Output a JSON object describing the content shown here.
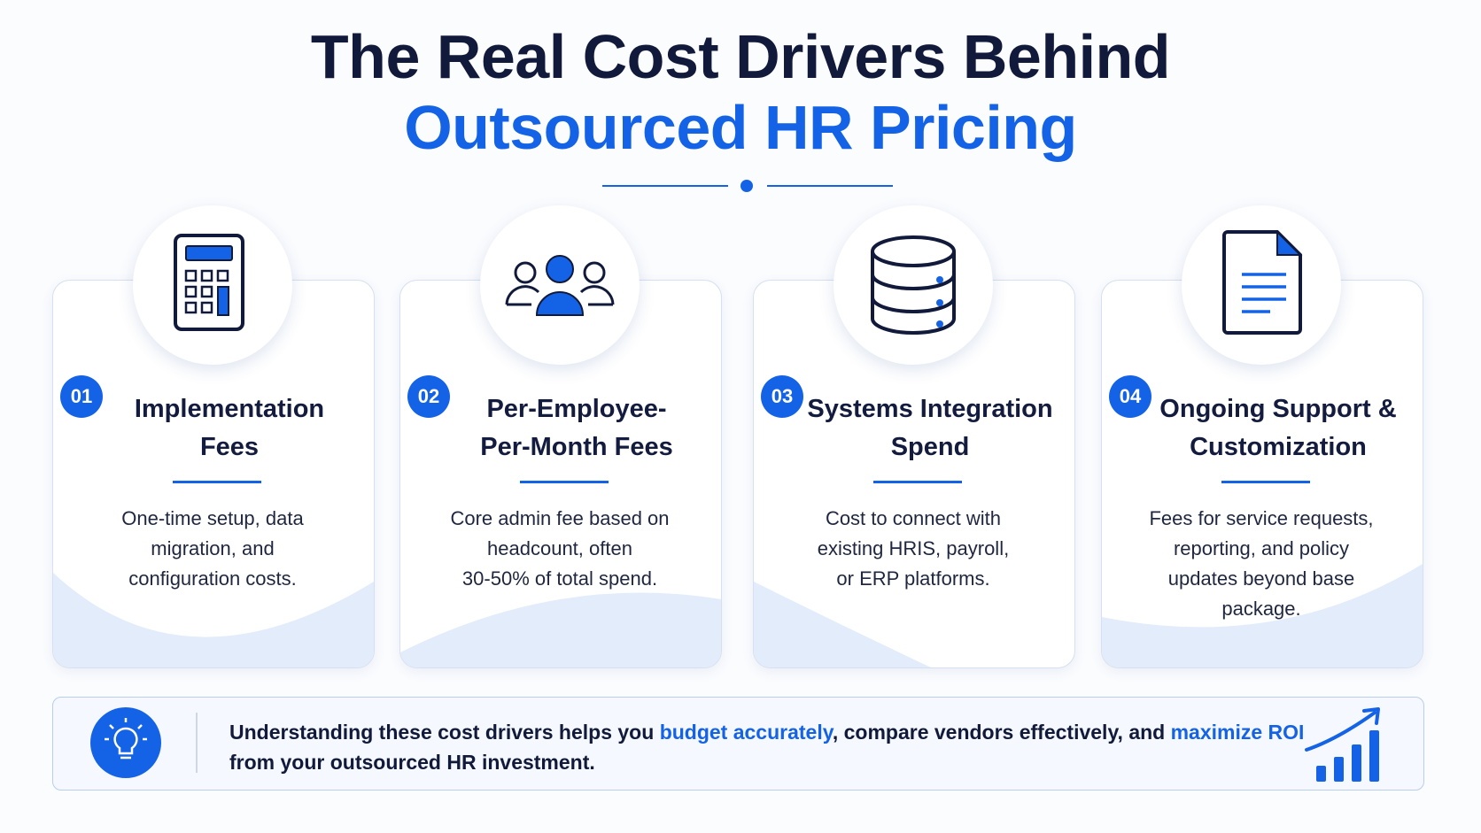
{
  "header": {
    "title_line1": "The Real Cost Drivers Behind",
    "title_line2": "Outsourced HR Pricing"
  },
  "cards": [
    {
      "number": "01",
      "title_lines": [
        "Implementation",
        "Fees"
      ],
      "description_lines": [
        "One-time setup, data",
        "migration, and",
        "configuration costs."
      ]
    },
    {
      "number": "02",
      "title_lines": [
        "Per-Employee-",
        "Per-Month Fees"
      ],
      "description_lines": [
        "Core admin fee based on",
        "headcount, often",
        "30-50% of total spend."
      ]
    },
    {
      "number": "03",
      "title_lines": [
        "Systems Integration",
        "Spend"
      ],
      "description_lines": [
        "Cost to connect with",
        "existing HRIS, payroll,",
        "or ERP platforms."
      ]
    },
    {
      "number": "04",
      "title_lines": [
        "Ongoing Support &",
        "Customization"
      ],
      "description_lines": [
        "Fees for service requests,",
        "reporting, and policy",
        "updates beyond base",
        "package."
      ]
    }
  ],
  "footer": {
    "segments": [
      {
        "text": "Understanding these cost drivers helps you ",
        "highlight": false
      },
      {
        "text": "budget accurately",
        "highlight": true
      },
      {
        "text": ", compare vendors effectively, and ",
        "highlight": false
      },
      {
        "text": "maximize ROI",
        "highlight": true
      },
      {
        "text": " from your outsourced HR investment.",
        "highlight": false
      }
    ]
  }
}
